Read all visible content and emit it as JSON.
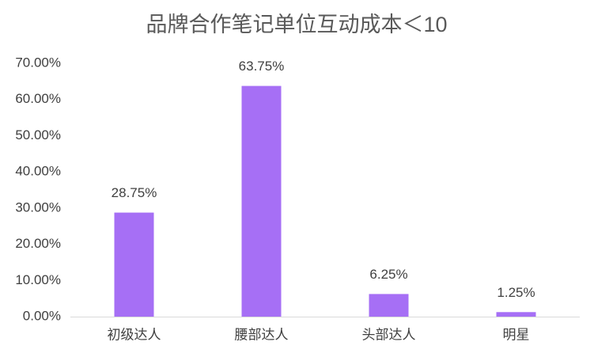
{
  "chart_data": {
    "type": "bar",
    "title": "品牌合作笔记单位互动成本＜10",
    "categories": [
      "初级达人",
      "腰部达人",
      "头部达人",
      "明星"
    ],
    "values": [
      28.75,
      63.75,
      6.25,
      1.25
    ],
    "value_labels": [
      "28.75%",
      "63.75%",
      "6.25%",
      "1.25%"
    ],
    "color": "#a66ff5",
    "ylim": [
      0,
      70
    ],
    "yticks": [
      {
        "value": 0,
        "label": "0.00%"
      },
      {
        "value": 10,
        "label": "10.00%"
      },
      {
        "value": 20,
        "label": "20.00%"
      },
      {
        "value": 30,
        "label": "30.00%"
      },
      {
        "value": 40,
        "label": "40.00%"
      },
      {
        "value": 50,
        "label": "50.00%"
      },
      {
        "value": 60,
        "label": "60.00%"
      },
      {
        "value": 70,
        "label": "70.00%"
      }
    ],
    "grid": false
  }
}
